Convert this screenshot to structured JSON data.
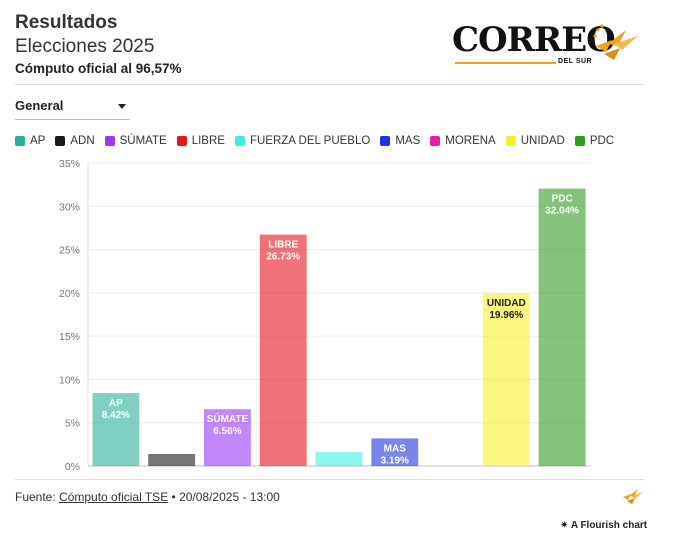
{
  "header": {
    "title": "Resultados",
    "subtitle": "Elecciones 2025",
    "subsubtitle": "Cómputo oficial al 96,57%"
  },
  "logo": {
    "word": "CORREO",
    "sub": "DEL SUR",
    "accent_color": "#f0a21f"
  },
  "filter": {
    "selected": "General"
  },
  "chart_data": {
    "type": "bar",
    "categories": [
      "AP",
      "ADN",
      "SÚMATE",
      "LIBRE",
      "FUERZA DEL PUEBLO",
      "MAS",
      "MORENA",
      "UNIDAD",
      "PDC"
    ],
    "values": [
      8.42,
      1.39,
      6.56,
      26.73,
      1.6,
      3.19,
      0,
      19.96,
      32.04
    ],
    "value_labels": [
      "8.42%",
      "",
      "6.56%",
      "26.73%",
      "",
      "3.19%",
      "",
      "19.96%",
      "32.04%"
    ],
    "bar_name_labels": [
      "AP",
      "",
      "SÚMATE",
      "LIBRE",
      "",
      "MAS",
      "",
      "UNIDAD",
      "PDC"
    ],
    "colors": [
      "#2ab09a",
      "#1a1a1a",
      "#9b36f0",
      "#e8141a",
      "#3ff0e0",
      "#2233e0",
      "#e81eaa",
      "#f6f02a",
      "#2e9e1e"
    ],
    "bar_opacity": 0.6,
    "ylim": [
      0,
      35
    ],
    "yticks": [
      "0%",
      "5%",
      "10%",
      "15%",
      "20%",
      "25%",
      "30%",
      "35%"
    ],
    "ytick_values": [
      0,
      5,
      10,
      15,
      20,
      25,
      30,
      35
    ],
    "grid": true,
    "legend_position": "top-left",
    "title": "",
    "xlabel": "",
    "ylabel": ""
  },
  "footer": {
    "source_prefix": "Fuente: ",
    "source_link": "Cómputo oficial TSE",
    "source_suffix": " • 20/08/2025 - 13:00",
    "flourish_label": "A Flourish chart"
  }
}
